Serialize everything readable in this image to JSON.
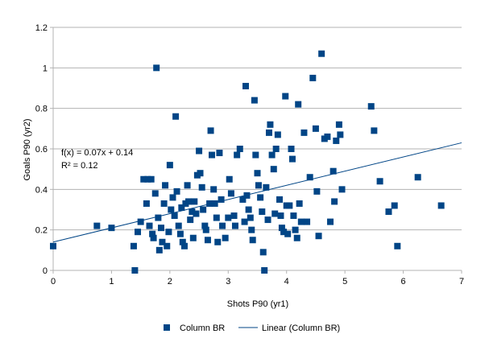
{
  "chart_data": {
    "type": "scatter",
    "xlabel": "Shots P90 (yr1)",
    "ylabel": "Goals P90 (yr2)",
    "xlim": [
      0,
      7
    ],
    "ylim": [
      0,
      1.2
    ],
    "x_ticks": [
      "0",
      "1",
      "2",
      "3",
      "4",
      "5",
      "6",
      "7"
    ],
    "y_ticks": [
      "0",
      "0.2",
      "0.4",
      "0.6",
      "0.8",
      "1",
      "1.2"
    ],
    "grid": "horizontal",
    "legend_position": "bottom",
    "colors": {
      "marker": "#004586",
      "trendline": "#004586",
      "grid": "#b3b3b3",
      "axis": "#b3b3b3"
    },
    "annotation": {
      "equation": "f(x) = 0.07x + 0.14",
      "r_squared": "R² = 0.12"
    },
    "trendline": {
      "slope": 0.07,
      "intercept": 0.14,
      "name": "Linear (Column BR)"
    },
    "series": [
      {
        "name": "Column BR",
        "points": [
          [
            0.0,
            0.12
          ],
          [
            0.75,
            0.22
          ],
          [
            1.0,
            0.21
          ],
          [
            1.38,
            0.12
          ],
          [
            1.4,
            0.0
          ],
          [
            1.45,
            0.19
          ],
          [
            1.5,
            0.24
          ],
          [
            1.55,
            0.45
          ],
          [
            1.6,
            0.33
          ],
          [
            1.62,
            0.45
          ],
          [
            1.65,
            0.22
          ],
          [
            1.68,
            0.45
          ],
          [
            1.7,
            0.18
          ],
          [
            1.72,
            0.16
          ],
          [
            1.75,
            0.38
          ],
          [
            1.77,
            1.0
          ],
          [
            1.8,
            0.26
          ],
          [
            1.82,
            0.1
          ],
          [
            1.85,
            0.21
          ],
          [
            1.87,
            0.14
          ],
          [
            1.9,
            0.33
          ],
          [
            1.92,
            0.42
          ],
          [
            1.95,
            0.12
          ],
          [
            1.98,
            0.19
          ],
          [
            2.0,
            0.52
          ],
          [
            2.02,
            0.3
          ],
          [
            2.05,
            0.36
          ],
          [
            2.08,
            0.27
          ],
          [
            2.1,
            0.76
          ],
          [
            2.12,
            0.39
          ],
          [
            2.15,
            0.22
          ],
          [
            2.18,
            0.18
          ],
          [
            2.2,
            0.31
          ],
          [
            2.22,
            0.14
          ],
          [
            2.25,
            0.12
          ],
          [
            2.27,
            0.33
          ],
          [
            2.3,
            0.42
          ],
          [
            2.32,
            0.34
          ],
          [
            2.35,
            0.25
          ],
          [
            2.38,
            0.29
          ],
          [
            2.4,
            0.16
          ],
          [
            2.42,
            0.34
          ],
          [
            2.45,
            0.28
          ],
          [
            2.47,
            0.47
          ],
          [
            2.5,
            0.59
          ],
          [
            2.52,
            0.48
          ],
          [
            2.55,
            0.41
          ],
          [
            2.57,
            0.3
          ],
          [
            2.6,
            0.22
          ],
          [
            2.62,
            0.2
          ],
          [
            2.65,
            0.15
          ],
          [
            2.68,
            0.33
          ],
          [
            2.7,
            0.69
          ],
          [
            2.72,
            0.57
          ],
          [
            2.75,
            0.4
          ],
          [
            2.77,
            0.33
          ],
          [
            2.8,
            0.26
          ],
          [
            2.82,
            0.14
          ],
          [
            2.85,
            0.58
          ],
          [
            2.88,
            0.35
          ],
          [
            2.9,
            0.22
          ],
          [
            2.95,
            0.16
          ],
          [
            3.0,
            0.26
          ],
          [
            3.02,
            0.45
          ],
          [
            3.05,
            0.38
          ],
          [
            3.1,
            0.27
          ],
          [
            3.12,
            0.22
          ],
          [
            3.15,
            0.57
          ],
          [
            3.2,
            0.6
          ],
          [
            3.25,
            0.35
          ],
          [
            3.28,
            0.24
          ],
          [
            3.3,
            0.91
          ],
          [
            3.32,
            0.37
          ],
          [
            3.35,
            0.3
          ],
          [
            3.38,
            0.26
          ],
          [
            3.4,
            0.2
          ],
          [
            3.42,
            0.15
          ],
          [
            3.45,
            0.84
          ],
          [
            3.47,
            0.57
          ],
          [
            3.5,
            0.48
          ],
          [
            3.52,
            0.42
          ],
          [
            3.55,
            0.36
          ],
          [
            3.58,
            0.29
          ],
          [
            3.6,
            0.09
          ],
          [
            3.62,
            0.0
          ],
          [
            3.65,
            0.41
          ],
          [
            3.68,
            0.25
          ],
          [
            3.7,
            0.68
          ],
          [
            3.72,
            0.72
          ],
          [
            3.75,
            0.57
          ],
          [
            3.78,
            0.5
          ],
          [
            3.8,
            0.28
          ],
          [
            3.82,
            0.6
          ],
          [
            3.85,
            0.67
          ],
          [
            3.88,
            0.35
          ],
          [
            3.9,
            0.27
          ],
          [
            3.92,
            0.21
          ],
          [
            3.95,
            0.19
          ],
          [
            3.98,
            0.86
          ],
          [
            4.0,
            0.32
          ],
          [
            4.02,
            0.18
          ],
          [
            4.05,
            0.32
          ],
          [
            4.08,
            0.6
          ],
          [
            4.1,
            0.55
          ],
          [
            4.12,
            0.27
          ],
          [
            4.15,
            0.2
          ],
          [
            4.18,
            0.16
          ],
          [
            4.2,
            0.82
          ],
          [
            4.22,
            0.33
          ],
          [
            4.25,
            0.24
          ],
          [
            4.3,
            0.68
          ],
          [
            4.35,
            0.24
          ],
          [
            4.4,
            0.46
          ],
          [
            4.45,
            0.95
          ],
          [
            4.5,
            0.7
          ],
          [
            4.52,
            0.39
          ],
          [
            4.55,
            0.17
          ],
          [
            4.6,
            1.07
          ],
          [
            4.65,
            0.65
          ],
          [
            4.7,
            0.66
          ],
          [
            4.75,
            0.24
          ],
          [
            4.8,
            0.49
          ],
          [
            4.82,
            0.34
          ],
          [
            4.85,
            0.64
          ],
          [
            4.9,
            0.72
          ],
          [
            4.92,
            0.67
          ],
          [
            4.95,
            0.4
          ],
          [
            5.45,
            0.81
          ],
          [
            5.5,
            0.69
          ],
          [
            5.6,
            0.44
          ],
          [
            5.75,
            0.29
          ],
          [
            5.85,
            0.32
          ],
          [
            5.9,
            0.12
          ],
          [
            6.25,
            0.46
          ],
          [
            6.65,
            0.32
          ]
        ]
      }
    ]
  }
}
